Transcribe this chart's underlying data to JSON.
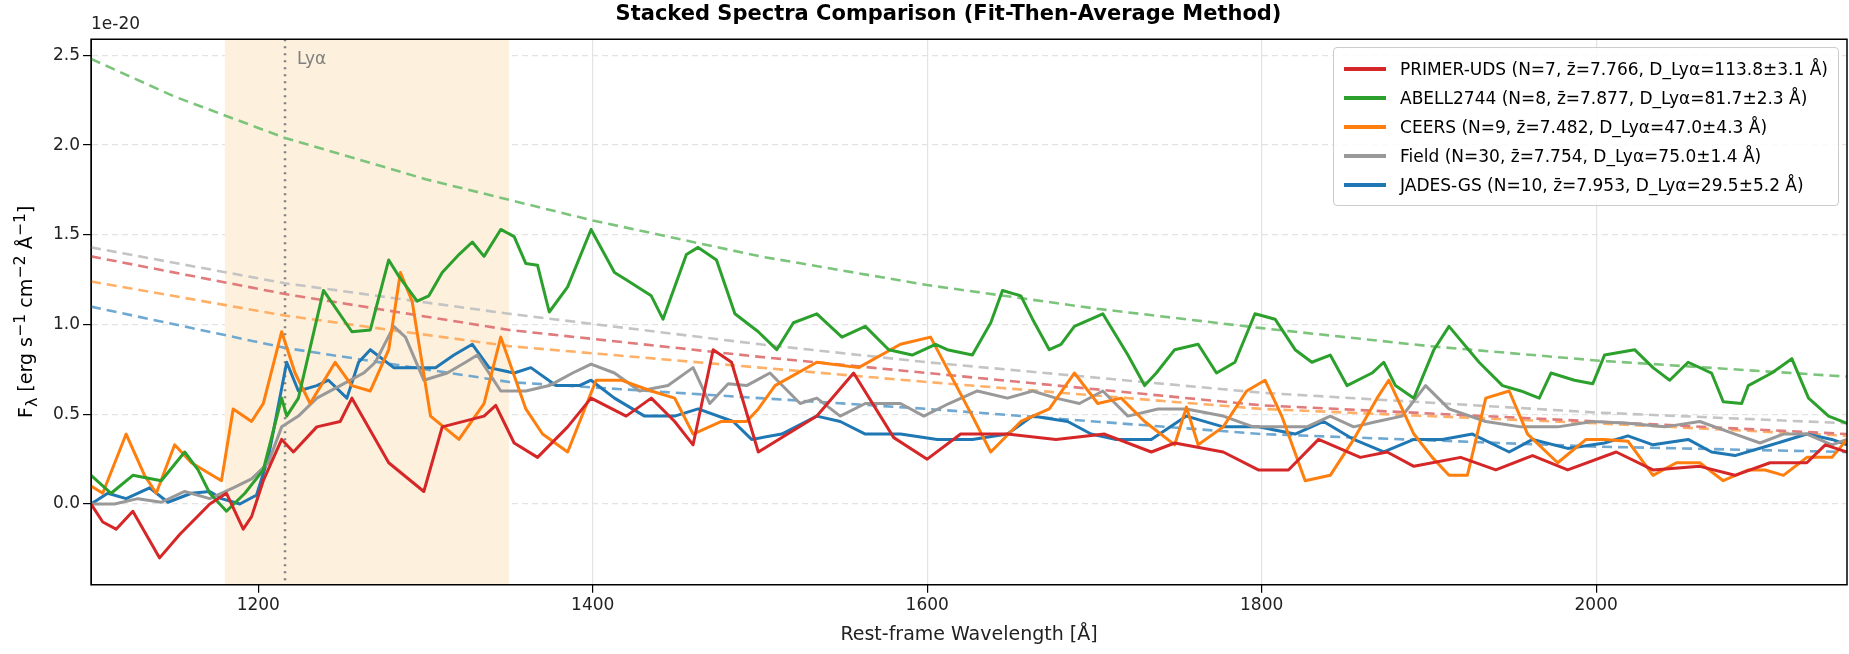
{
  "chart_data": {
    "type": "line",
    "title": "Stacked Spectra Comparison (Fit-Then-Average Method)",
    "xlabel": "Rest-frame Wavelength [Å]",
    "ylabel": "F$_{λ}$ [erg s$^{−1}$ cm$^{−2}$ Å$^{−1}$]",
    "annotations": [
      "1e-20"
    ],
    "xlim": [
      1100,
      2150
    ],
    "xticks": [
      1200,
      1400,
      1600,
      1800,
      2000
    ],
    "ylim": [
      -0.45,
      2.59
    ],
    "yticks": [
      {
        "value": 0,
        "label": "0.0"
      },
      {
        "value": 0.5,
        "label": "0.5"
      },
      {
        "value": 1,
        "label": "1.0"
      },
      {
        "value": 1.5,
        "label": "1.5"
      },
      {
        "value": 2,
        "label": "2.0"
      },
      {
        "value": 2.5,
        "label": "2.5"
      }
    ],
    "grid": true,
    "legend": "top right",
    "marker": "none",
    "line_style": "solid",
    "bands": [
      {
        "axis": "x",
        "from": 1180,
        "to": 1350,
        "color": "#fdf0dc"
      }
    ],
    "ref_lines": [
      {
        "axis": "x",
        "value": 1216,
        "label": "Lyα",
        "color": "#808080",
        "line_style": "dotted"
      }
    ],
    "series": [
      {
        "name": "PRIMER-UDS (N=7, z̄=7.766, D_Lyα=113.8±3.1 Å)",
        "color": "#d62728",
        "x": [
          1100,
          1107,
          1115,
          1125,
          1141,
          1153,
          1171,
          1181,
          1191,
          1196,
          1203,
          1214,
          1221,
          1235,
          1249,
          1256,
          1278,
          1299,
          1310,
          1335,
          1342,
          1353,
          1367,
          1385,
          1399,
          1420,
          1435,
          1449,
          1460,
          1472,
          1483,
          1499,
          1534,
          1556,
          1580,
          1600,
          1620,
          1648,
          1677,
          1706,
          1734,
          1748,
          1777,
          1798,
          1816,
          1834,
          1859,
          1875,
          1891,
          1919,
          1940,
          1962,
          1983,
          2012,
          2034,
          2062,
          2083,
          2104,
          2126,
          2137,
          2150
        ],
        "values": [
          0.0,
          -0.1,
          -0.14,
          -0.04,
          -0.3,
          -0.17,
          0.0,
          0.06,
          -0.14,
          -0.07,
          0.13,
          0.36,
          0.29,
          0.43,
          0.46,
          0.59,
          0.23,
          0.07,
          0.43,
          0.49,
          0.55,
          0.34,
          0.26,
          0.43,
          0.59,
          0.49,
          0.59,
          0.46,
          0.33,
          0.86,
          0.79,
          0.29,
          0.49,
          0.73,
          0.37,
          0.25,
          0.39,
          0.39,
          0.36,
          0.39,
          0.29,
          0.34,
          0.29,
          0.19,
          0.19,
          0.36,
          0.26,
          0.29,
          0.21,
          0.26,
          0.19,
          0.27,
          0.19,
          0.29,
          0.19,
          0.21,
          0.16,
          0.23,
          0.23,
          0.33,
          0.29
        ]
      },
      {
        "name": "ABELL2744 (N=8, z̄=7.877, D_Lyα=81.7±2.3 Å)",
        "color": "#2ca02c",
        "x": [
          1100,
          1112,
          1125,
          1142,
          1156,
          1164,
          1171,
          1181,
          1192,
          1203,
          1214,
          1217,
          1224,
          1239,
          1256,
          1267,
          1278,
          1284,
          1295,
          1302,
          1310,
          1320,
          1328,
          1335,
          1345,
          1353,
          1360,
          1367,
          1374,
          1385,
          1399,
          1413,
          1420,
          1435,
          1442,
          1456,
          1463,
          1474,
          1485,
          1499,
          1510,
          1520,
          1534,
          1549,
          1563,
          1577,
          1591,
          1605,
          1612,
          1627,
          1638,
          1645,
          1656,
          1663,
          1673,
          1680,
          1688,
          1705,
          1720,
          1730,
          1737,
          1748,
          1762,
          1773,
          1784,
          1796,
          1808,
          1820,
          1830,
          1841,
          1851,
          1866,
          1873,
          1880,
          1891,
          1903,
          1912,
          1930,
          1944,
          1955,
          1966,
          1973,
          1987,
          1998,
          2005,
          2023,
          2034,
          2044,
          2055,
          2069,
          2076,
          2087,
          2091,
          2105,
          2117,
          2127,
          2139,
          2150
        ],
        "values": [
          0.16,
          0.06,
          0.16,
          0.13,
          0.29,
          0.19,
          0.06,
          -0.04,
          0.06,
          0.19,
          0.59,
          0.49,
          0.59,
          1.19,
          0.96,
          0.97,
          1.36,
          1.27,
          1.13,
          1.16,
          1.29,
          1.39,
          1.46,
          1.38,
          1.53,
          1.49,
          1.34,
          1.33,
          1.07,
          1.21,
          1.53,
          1.29,
          1.25,
          1.16,
          1.03,
          1.39,
          1.43,
          1.36,
          1.06,
          0.96,
          0.86,
          1.01,
          1.06,
          0.93,
          0.99,
          0.86,
          0.83,
          0.89,
          0.86,
          0.83,
          1.01,
          1.19,
          1.16,
          1.03,
          0.86,
          0.89,
          0.99,
          1.06,
          0.83,
          0.66,
          0.73,
          0.86,
          0.89,
          0.73,
          0.79,
          1.06,
          1.03,
          0.86,
          0.79,
          0.83,
          0.66,
          0.73,
          0.79,
          0.66,
          0.59,
          0.86,
          0.99,
          0.79,
          0.66,
          0.63,
          0.59,
          0.73,
          0.69,
          0.67,
          0.83,
          0.86,
          0.76,
          0.69,
          0.79,
          0.73,
          0.57,
          0.56,
          0.66,
          0.73,
          0.81,
          0.59,
          0.49,
          0.45
        ]
      },
      {
        "name": "CEERS (N=9, z̄=7.482, D_Lyα=47.0±4.3 Å)",
        "color": "#ff7f0e",
        "x": [
          1100,
          1107,
          1121,
          1132,
          1139,
          1150,
          1160,
          1178,
          1185,
          1196,
          1203,
          1214,
          1222,
          1231,
          1246,
          1256,
          1267,
          1278,
          1285,
          1292,
          1303,
          1320,
          1335,
          1345,
          1360,
          1370,
          1385,
          1402,
          1417,
          1435,
          1449,
          1460,
          1477,
          1492,
          1499,
          1509,
          1534,
          1559,
          1584,
          1602,
          1627,
          1638,
          1656,
          1673,
          1688,
          1702,
          1716,
          1730,
          1748,
          1755,
          1762,
          1777,
          1791,
          1802,
          1812,
          1826,
          1841,
          1855,
          1869,
          1876,
          1891,
          1902,
          1912,
          1923,
          1934,
          1948,
          1959,
          1977,
          1994,
          2005,
          2019,
          2034,
          2048,
          2062,
          2076,
          2091,
          2101,
          2112,
          2126,
          2141,
          2150
        ],
        "values": [
          0.1,
          0.06,
          0.39,
          0.16,
          0.06,
          0.33,
          0.23,
          0.13,
          0.53,
          0.46,
          0.56,
          0.96,
          0.73,
          0.56,
          0.79,
          0.66,
          0.63,
          0.86,
          1.29,
          1.13,
          0.49,
          0.36,
          0.56,
          0.93,
          0.53,
          0.39,
          0.29,
          0.69,
          0.69,
          0.63,
          0.59,
          0.39,
          0.46,
          0.46,
          0.53,
          0.66,
          0.79,
          0.76,
          0.89,
          0.93,
          0.49,
          0.29,
          0.46,
          0.53,
          0.73,
          0.56,
          0.59,
          0.46,
          0.33,
          0.54,
          0.33,
          0.43,
          0.63,
          0.69,
          0.49,
          0.13,
          0.16,
          0.36,
          0.59,
          0.69,
          0.39,
          0.26,
          0.16,
          0.16,
          0.59,
          0.63,
          0.39,
          0.23,
          0.36,
          0.36,
          0.35,
          0.16,
          0.23,
          0.23,
          0.13,
          0.19,
          0.19,
          0.16,
          0.26,
          0.26,
          0.36
        ]
      },
      {
        "name": "Field (N=30, z̄=7.754, D_Lyα=75.0±1.4 Å)",
        "color": "#999999",
        "x": [
          1100,
          1114,
          1128,
          1142,
          1156,
          1171,
          1185,
          1196,
          1206,
          1214,
          1224,
          1235,
          1249,
          1263,
          1270,
          1281,
          1288,
          1299,
          1313,
          1324,
          1331,
          1345,
          1360,
          1374,
          1388,
          1399,
          1413,
          1428,
          1445,
          1460,
          1470,
          1481,
          1492,
          1506,
          1524,
          1534,
          1548,
          1563,
          1584,
          1598,
          1613,
          1630,
          1648,
          1663,
          1677,
          1691,
          1705,
          1720,
          1738,
          1755,
          1777,
          1795,
          1812,
          1827,
          1841,
          1855,
          1869,
          1884,
          1898,
          1912,
          1934,
          1955,
          1977,
          1998,
          2019,
          2041,
          2062,
          2083,
          2098,
          2112,
          2126,
          2141,
          2150
        ],
        "values": [
          0.0,
          0.0,
          0.03,
          0.01,
          0.07,
          0.03,
          0.09,
          0.14,
          0.23,
          0.43,
          0.49,
          0.59,
          0.66,
          0.73,
          0.79,
          0.99,
          0.93,
          0.69,
          0.73,
          0.79,
          0.83,
          0.63,
          0.63,
          0.66,
          0.73,
          0.78,
          0.73,
          0.63,
          0.66,
          0.76,
          0.56,
          0.67,
          0.66,
          0.73,
          0.56,
          0.59,
          0.49,
          0.56,
          0.56,
          0.49,
          0.56,
          0.63,
          0.59,
          0.63,
          0.59,
          0.56,
          0.63,
          0.49,
          0.53,
          0.53,
          0.49,
          0.43,
          0.43,
          0.43,
          0.49,
          0.43,
          0.46,
          0.49,
          0.66,
          0.53,
          0.46,
          0.43,
          0.43,
          0.46,
          0.45,
          0.43,
          0.46,
          0.39,
          0.34,
          0.39,
          0.39,
          0.33,
          0.36
        ]
      },
      {
        "name": "JADES-GS (N=10, z̄=7.953, D_Lyα=29.5±5.2 Å)",
        "color": "#1f77b4",
        "x": [
          1100,
          1110,
          1121,
          1135,
          1146,
          1160,
          1171,
          1178,
          1189,
          1199,
          1206,
          1217,
          1224,
          1235,
          1242,
          1253,
          1260,
          1267,
          1281,
          1306,
          1317,
          1328,
          1338,
          1353,
          1363,
          1378,
          1392,
          1399,
          1413,
          1431,
          1449,
          1463,
          1484,
          1495,
          1513,
          1534,
          1548,
          1563,
          1584,
          1606,
          1627,
          1648,
          1663,
          1684,
          1698,
          1713,
          1734,
          1755,
          1777,
          1798,
          1820,
          1837,
          1855,
          1873,
          1891,
          1908,
          1926,
          1948,
          1962,
          1983,
          2005,
          2019,
          2034,
          2055,
          2069,
          2083,
          2105,
          2126,
          2141,
          2150
        ],
        "values": [
          0.0,
          0.06,
          0.03,
          0.09,
          0.01,
          0.06,
          0.07,
          0.03,
          0.0,
          0.05,
          0.26,
          0.79,
          0.63,
          0.66,
          0.69,
          0.59,
          0.79,
          0.86,
          0.76,
          0.76,
          0.83,
          0.89,
          0.76,
          0.73,
          0.76,
          0.66,
          0.66,
          0.69,
          0.59,
          0.49,
          0.49,
          0.53,
          0.46,
          0.36,
          0.39,
          0.49,
          0.46,
          0.39,
          0.39,
          0.36,
          0.36,
          0.39,
          0.49,
          0.46,
          0.39,
          0.36,
          0.36,
          0.49,
          0.43,
          0.43,
          0.39,
          0.46,
          0.36,
          0.29,
          0.36,
          0.36,
          0.39,
          0.29,
          0.36,
          0.31,
          0.34,
          0.38,
          0.33,
          0.36,
          0.29,
          0.27,
          0.33,
          0.39,
          0.36,
          0.33
        ]
      },
      {
        "type": "line",
        "color": "#e07a7b",
        "line_style": "dashed",
        "x": [
          1100,
          1216,
          1350,
          1500,
          1600,
          1800,
          2000,
          2150
        ],
        "values": [
          1.38,
          1.17,
          0.97,
          0.82,
          0.73,
          0.55,
          0.46,
          0.39
        ]
      },
      {
        "type": "line",
        "color": "#7cc47c",
        "line_style": "dashed",
        "x": [
          1100,
          1150,
          1216,
          1300,
          1400,
          1500,
          1600,
          1700,
          1800,
          1900,
          2000,
          2100,
          2150
        ],
        "values": [
          2.48,
          2.27,
          2.04,
          1.81,
          1.58,
          1.38,
          1.22,
          1.09,
          0.98,
          0.88,
          0.8,
          0.74,
          0.71
        ]
      },
      {
        "type": "line",
        "color": "#ffb066",
        "line_style": "dashed",
        "x": [
          1100,
          1216,
          1350,
          1500,
          1600,
          1800,
          2000,
          2150
        ],
        "values": [
          1.24,
          1.05,
          0.88,
          0.76,
          0.68,
          0.53,
          0.45,
          0.38
        ]
      },
      {
        "type": "line",
        "color": "#c4c4c4",
        "line_style": "dashed",
        "x": [
          1100,
          1216,
          1350,
          1500,
          1600,
          1800,
          2000,
          2150
        ],
        "values": [
          1.43,
          1.23,
          1.06,
          0.89,
          0.79,
          0.62,
          0.51,
          0.45
        ]
      },
      {
        "type": "line",
        "color": "#6fa8d0",
        "line_style": "dashed",
        "x": [
          1100,
          1216,
          1350,
          1500,
          1600,
          1800,
          2000,
          2150
        ],
        "values": [
          1.1,
          0.87,
          0.68,
          0.59,
          0.53,
          0.39,
          0.32,
          0.29
        ]
      }
    ]
  }
}
